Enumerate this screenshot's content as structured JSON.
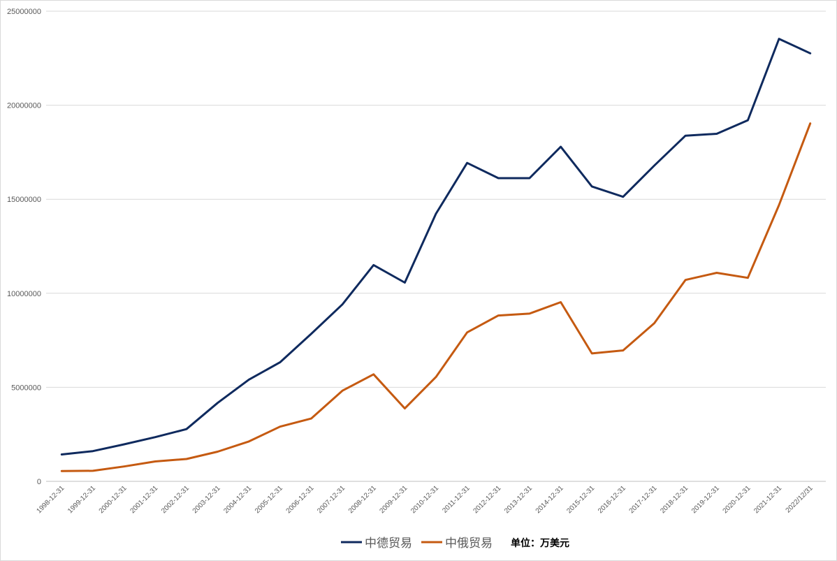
{
  "chart_data": {
    "type": "line",
    "title": "",
    "xlabel": "",
    "ylabel": "",
    "unit_note": "单位：万美元",
    "ylim": [
      0,
      25000000
    ],
    "y_ticks": [
      0,
      5000000,
      10000000,
      15000000,
      20000000,
      25000000
    ],
    "y_tick_labels": [
      "0",
      "5000000",
      "10000000",
      "15000000",
      "20000000",
      "25000000"
    ],
    "grid": true,
    "legend_position": "bottom",
    "categories": [
      "1998-12-31",
      "1999-12-31",
      "2000-12-31",
      "2001-12-31",
      "2002-12-31",
      "2003-12-31",
      "2004-12-31",
      "2005-12-31",
      "2006-12-31",
      "2007-12-31",
      "2008-12-31",
      "2009-12-31",
      "2010-12-31",
      "2011-12-31",
      "2012-12-31",
      "2013-12-31",
      "2014-12-31",
      "2015-12-31",
      "2016-12-31",
      "2017-12-31",
      "2018-12-31",
      "2019-12-31",
      "2020-12-31",
      "2021-12-31",
      "2022/12/31"
    ],
    "series": [
      {
        "name": "中德贸易",
        "color": "#0f2a5e",
        "values": [
          1430000,
          1610000,
          1970000,
          2350000,
          2780000,
          4170000,
          5410000,
          6330000,
          7840000,
          9410000,
          11500000,
          10570000,
          14230000,
          16930000,
          16120000,
          16120000,
          17790000,
          15680000,
          15130000,
          16790000,
          18380000,
          18480000,
          19200000,
          23530000,
          22760000
        ]
      },
      {
        "name": "中俄贸易",
        "color": "#c55a11",
        "values": [
          550000,
          560000,
          790000,
          1060000,
          1190000,
          1580000,
          2120000,
          2910000,
          3340000,
          4820000,
          5690000,
          3880000,
          5550000,
          7920000,
          8820000,
          8920000,
          9530000,
          6800000,
          6960000,
          8410000,
          10710000,
          11090000,
          10820000,
          14690000,
          19030000
        ]
      }
    ]
  }
}
